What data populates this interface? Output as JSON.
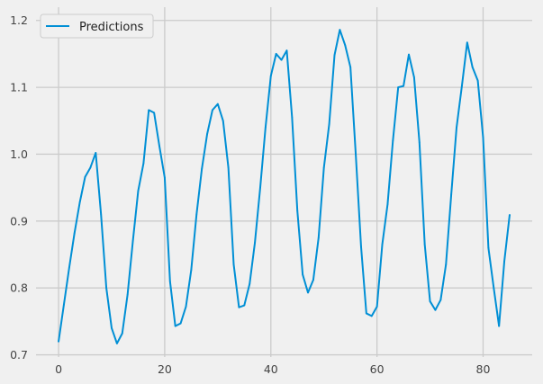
{
  "chart_data": {
    "type": "line",
    "title": "",
    "xlabel": "",
    "ylabel": "",
    "xlim": [
      -4.25,
      89.25
    ],
    "ylim": [
      0.6967,
      1.2198
    ],
    "xticks": [
      0,
      20,
      40,
      60,
      80
    ],
    "xtick_labels": [
      "0",
      "20",
      "40",
      "60",
      "80"
    ],
    "yticks": [
      0.7,
      0.8,
      0.9,
      1.0,
      1.1,
      1.2
    ],
    "ytick_labels": [
      "0.7",
      "0.8",
      "0.9",
      "1.0",
      "1.1",
      "1.2"
    ],
    "grid": true,
    "legend": "top-left",
    "colors": {
      "background": "#f0f0f0",
      "grid": "#cbcbcb",
      "line": "#008fd5"
    },
    "series": [
      {
        "name": "Predictions",
        "x": [
          0,
          1,
          2,
          3,
          4,
          5,
          6,
          7,
          8,
          9,
          10,
          11,
          12,
          13,
          14,
          15,
          16,
          17,
          18,
          19,
          20,
          21,
          22,
          23,
          24,
          25,
          26,
          27,
          28,
          29,
          30,
          31,
          32,
          33,
          34,
          35,
          36,
          37,
          38,
          39,
          40,
          41,
          42,
          43,
          44,
          45,
          46,
          47,
          48,
          49,
          50,
          51,
          52,
          53,
          54,
          55,
          56,
          57,
          58,
          59,
          60,
          61,
          62,
          63,
          64,
          65,
          66,
          67,
          68,
          69,
          70,
          71,
          72,
          73,
          74,
          75,
          76,
          77,
          78,
          79,
          80,
          81,
          82,
          83,
          84,
          85
        ],
        "values": [
          0.72,
          0.775,
          0.83,
          0.882,
          0.928,
          0.966,
          0.98,
          1.002,
          0.91,
          0.8,
          0.74,
          0.717,
          0.732,
          0.79,
          0.87,
          0.945,
          0.986,
          1.066,
          1.062,
          1.012,
          0.965,
          0.81,
          0.743,
          0.747,
          0.772,
          0.827,
          0.91,
          0.978,
          1.03,
          1.066,
          1.075,
          1.05,
          0.98,
          0.835,
          0.771,
          0.774,
          0.806,
          0.868,
          0.95,
          1.04,
          1.117,
          1.15,
          1.141,
          1.155,
          1.055,
          0.915,
          0.82,
          0.793,
          0.812,
          0.875,
          0.98,
          1.045,
          1.148,
          1.186,
          1.163,
          1.13,
          1.0,
          0.862,
          0.762,
          0.758,
          0.772,
          0.865,
          0.925,
          1.02,
          1.1,
          1.102,
          1.149,
          1.115,
          1.018,
          0.865,
          0.78,
          0.767,
          0.782,
          0.835,
          0.94,
          1.04,
          1.102,
          1.167,
          1.13,
          1.11,
          1.025,
          0.86,
          0.8,
          0.743,
          0.84,
          0.909
        ]
      }
    ]
  }
}
